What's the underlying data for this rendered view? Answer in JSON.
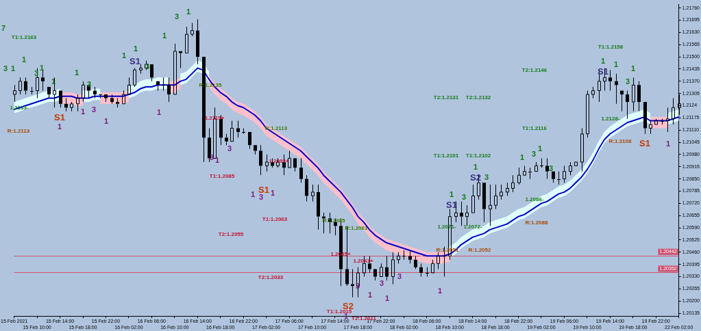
{
  "chart_data": {
    "type": "candlestick",
    "color": "#000000",
    "grid": false,
    "categories": [
      "15 Feb 2021",
      null,
      null,
      null,
      "15 Feb 10:00",
      null,
      null,
      null,
      "15 Feb 14:00",
      null,
      null,
      null,
      "15 Feb 18:00",
      null,
      null,
      null,
      "15 Feb 22:00",
      null,
      null,
      null,
      "16 Feb 02:00",
      null,
      null,
      null,
      "16 Feb 06:00",
      null,
      null,
      null,
      "16 Feb 10:00",
      null,
      null,
      null,
      "16 Feb 14:00",
      null,
      null,
      null,
      "16 Feb 18:00",
      null,
      null,
      null,
      "16 Feb 22:00",
      null,
      null,
      null,
      "17 Feb 02:00",
      null,
      null,
      null,
      "17 Feb 06:00",
      null,
      null,
      null,
      "17 Feb 10:00",
      null,
      null,
      null,
      "17 Feb 14:00",
      null,
      null,
      null,
      "17 Feb 18:00",
      null,
      null,
      null,
      "17 Feb 22:00",
      null,
      null,
      null,
      "18 Feb 02:00",
      null,
      null,
      null,
      "18 Feb 06:00",
      null,
      null,
      null,
      "18 Feb 10:00",
      null,
      null,
      null,
      "18 Feb 14:00",
      null,
      null,
      null,
      "18 Feb 18:00",
      null,
      null,
      null,
      "18 Feb 22:00",
      null,
      null,
      null,
      "19 Feb 02:00",
      null,
      null,
      null,
      "19 Feb 06:00",
      null,
      null,
      null,
      "19 Feb 10:00",
      null,
      null,
      null,
      "19 Feb 14:00",
      null,
      null,
      null,
      "19 Feb 18:00",
      null,
      null,
      null,
      "19 Feb 22:00",
      null,
      null,
      null,
      "22 Feb 02:00"
    ],
    "ohlc": [
      [
        1.213,
        1.2135,
        1.2126,
        1.2132
      ],
      [
        1.2132,
        1.2139,
        1.213,
        1.2137
      ],
      [
        1.2137,
        1.2139,
        1.213,
        1.2132
      ],
      [
        1.2132,
        1.2134,
        1.213,
        1.2132
      ],
      [
        1.2132,
        1.2144,
        1.2128,
        1.2139
      ],
      [
        1.2139,
        1.2143,
        1.2132,
        1.2137
      ],
      [
        1.2134,
        1.2134,
        1.2128,
        1.213
      ],
      [
        1.213,
        1.2139,
        1.2123,
        1.2132
      ],
      [
        1.2132,
        1.2132,
        1.2123,
        1.2125
      ],
      [
        1.2125,
        1.2128,
        1.2121,
        1.2123
      ],
      [
        1.2123,
        1.2126,
        1.2121,
        1.2125
      ],
      [
        1.2125,
        1.213,
        1.2121,
        1.2128
      ],
      [
        1.2128,
        1.2137,
        1.2126,
        1.2135
      ],
      [
        1.2135,
        1.2135,
        1.2128,
        1.2132
      ],
      [
        1.2132,
        1.2134,
        1.2128,
        1.213
      ],
      [
        1.213,
        1.213,
        1.2128,
        1.213
      ],
      [
        1.213,
        1.213,
        1.2126,
        1.2128
      ],
      [
        1.2128,
        1.213,
        1.2125,
        1.2126
      ],
      [
        1.2126,
        1.2128,
        1.2123,
        1.2125
      ],
      [
        1.2125,
        1.2132,
        1.2125,
        1.213
      ],
      [
        1.213,
        1.2139,
        1.213,
        1.2135
      ],
      [
        1.2135,
        1.2144,
        1.2134,
        1.2143
      ],
      [
        1.2143,
        1.2146,
        1.2141,
        1.2144
      ],
      [
        1.2144,
        1.2148,
        1.2143,
        1.2146
      ],
      [
        1.2146,
        1.2146,
        1.2137,
        1.2139
      ],
      [
        1.2137,
        1.2137,
        1.2132,
        1.2135
      ],
      [
        1.2135,
        1.2139,
        1.2132,
        1.2135
      ],
      [
        1.2135,
        1.2139,
        1.2126,
        1.213
      ],
      [
        1.213,
        1.2157,
        1.213,
        1.2153
      ],
      [
        1.2153,
        1.2153,
        1.2144,
        1.2152
      ],
      [
        1.2152,
        1.2166,
        1.2152,
        1.2162
      ],
      [
        1.2162,
        1.2168,
        1.2161,
        1.2164
      ],
      [
        1.2164,
        1.217,
        1.2146,
        1.215
      ],
      [
        1.215,
        1.215,
        1.2094,
        1.2107
      ],
      [
        1.2107,
        1.2112,
        1.2094,
        1.2096
      ],
      [
        1.2096,
        1.2123,
        1.2096,
        1.2117
      ],
      [
        1.2117,
        1.2119,
        1.2103,
        1.2107
      ],
      [
        1.2107,
        1.2109,
        1.2103,
        1.2105
      ],
      [
        1.2105,
        1.2116,
        1.2105,
        1.2112
      ],
      [
        1.2112,
        1.2116,
        1.2107,
        1.211
      ],
      [
        1.211,
        1.2112,
        1.2109,
        1.211
      ],
      [
        1.211,
        1.211,
        1.2101,
        1.2103
      ],
      [
        1.2103,
        1.2103,
        1.2098,
        1.21
      ],
      [
        1.21,
        1.2103,
        1.2087,
        1.2092
      ],
      [
        1.2092,
        1.2098,
        1.2089,
        1.2094
      ],
      [
        1.2094,
        1.2096,
        1.2091,
        1.2092
      ],
      [
        1.2092,
        1.2096,
        1.2091,
        1.2094
      ],
      [
        1.2094,
        1.2098,
        1.2087,
        1.2091
      ],
      [
        1.2091,
        1.21,
        1.2091,
        1.2096
      ],
      [
        1.2096,
        1.2096,
        1.2089,
        1.2091
      ],
      [
        1.2091,
        1.2096,
        1.2083,
        1.2085
      ],
      [
        1.2085,
        1.2087,
        1.2073,
        1.2076
      ],
      [
        1.2076,
        1.2082,
        1.2073,
        1.2078
      ],
      [
        1.2078,
        1.2082,
        1.2058,
        1.2065
      ],
      [
        1.2065,
        1.2067,
        1.2056,
        1.2064
      ],
      [
        1.2064,
        1.2067,
        1.2056,
        1.2062
      ],
      [
        1.2062,
        1.2064,
        1.2055,
        1.206
      ],
      [
        1.206,
        1.2064,
        1.2028,
        1.2037
      ],
      [
        1.2037,
        1.206,
        1.2028,
        1.2029
      ],
      [
        1.2029,
        1.2037,
        1.2022,
        1.2028
      ],
      [
        1.2028,
        1.2038,
        1.2022,
        1.2035
      ],
      [
        1.2035,
        1.2044,
        1.2033,
        1.204
      ],
      [
        1.204,
        1.2044,
        1.2035,
        1.2037
      ],
      [
        1.2037,
        1.2037,
        1.2031,
        1.2033
      ],
      [
        1.2033,
        1.204,
        1.2033,
        1.2038
      ],
      [
        1.2038,
        1.2044,
        1.2031,
        1.2033
      ],
      [
        1.2033,
        1.2046,
        1.2029,
        1.2042
      ],
      [
        1.2042,
        1.2046,
        1.204,
        1.2044
      ],
      [
        1.2044,
        1.2047,
        1.2042,
        1.2044
      ],
      [
        1.2044,
        1.2047,
        1.204,
        1.2042
      ],
      [
        1.2042,
        1.2044,
        1.2037,
        1.2038
      ],
      [
        1.2038,
        1.204,
        1.2033,
        1.2035
      ],
      [
        1.2035,
        1.2038,
        1.2033,
        1.2035
      ],
      [
        1.2035,
        1.2042,
        1.2035,
        1.204
      ],
      [
        1.204,
        1.2046,
        1.2037,
        1.2044
      ],
      [
        1.2044,
        1.2049,
        1.2033,
        1.2044
      ],
      [
        1.2044,
        1.2069,
        1.2042,
        1.2065
      ],
      [
        1.2065,
        1.2073,
        1.2062,
        1.2067
      ],
      [
        1.2067,
        1.2073,
        1.206,
        1.2065
      ],
      [
        1.2065,
        1.2071,
        1.206,
        1.2067
      ],
      [
        1.2067,
        1.2082,
        1.2067,
        1.2076
      ],
      [
        1.2076,
        1.2087,
        1.2074,
        1.2083
      ],
      [
        1.2083,
        1.2083,
        1.2062,
        1.2069
      ],
      [
        1.2069,
        1.2082,
        1.206,
        1.2071
      ],
      [
        1.2071,
        1.2082,
        1.2069,
        1.2076
      ],
      [
        1.2076,
        1.2082,
        1.2074,
        1.2078
      ],
      [
        1.2078,
        1.2083,
        1.2076,
        1.208
      ],
      [
        1.208,
        1.2087,
        1.2078,
        1.2083
      ],
      [
        1.2083,
        1.2091,
        1.2082,
        1.2087
      ],
      [
        1.2087,
        1.2092,
        1.2087,
        1.2089
      ],
      [
        1.2089,
        1.2091,
        1.2085,
        1.2089
      ],
      [
        1.2089,
        1.2094,
        1.2089,
        1.2092
      ],
      [
        1.2092,
        1.2096,
        1.2091,
        1.2092
      ],
      [
        1.2092,
        1.2096,
        1.2085,
        1.2089
      ],
      [
        1.2089,
        1.2089,
        1.2083,
        1.2085
      ],
      [
        1.2085,
        1.2089,
        1.2082,
        1.2085
      ],
      [
        1.2085,
        1.2092,
        1.2083,
        1.2089
      ],
      [
        1.2089,
        1.2094,
        1.2087,
        1.2092
      ],
      [
        1.2092,
        1.2094,
        1.2092,
        1.2094
      ],
      [
        1.2094,
        1.2112,
        1.2089,
        1.2109
      ],
      [
        1.2109,
        1.2132,
        1.2107,
        1.213
      ],
      [
        1.213,
        1.2134,
        1.2128,
        1.2132
      ],
      [
        1.2132,
        1.2143,
        1.2126,
        1.2137
      ],
      [
        1.2137,
        1.2144,
        1.2132,
        1.2139
      ],
      [
        1.2139,
        1.2143,
        1.2132,
        1.2137
      ],
      [
        1.2137,
        1.2141,
        1.2125,
        1.2135
      ],
      [
        1.2132,
        1.2132,
        1.2121,
        1.213
      ],
      [
        1.213,
        1.2132,
        1.2117,
        1.2126
      ],
      [
        1.2126,
        1.2139,
        1.2121,
        1.2135
      ],
      [
        1.2135,
        1.2137,
        1.2121,
        1.2126
      ],
      [
        1.2126,
        1.2126,
        1.2109,
        1.2112
      ],
      [
        1.2112,
        1.2116,
        1.2109,
        1.2114
      ],
      [
        1.2114,
        1.2117,
        1.2114,
        1.2116
      ],
      [
        1.2116,
        1.2117,
        1.2114,
        1.2116
      ],
      [
        1.2116,
        1.2123,
        1.211,
        1.2117
      ],
      [
        1.2117,
        1.2128,
        1.2114,
        1.2123
      ],
      [
        1.2123,
        1.213,
        1.2119,
        1.2125
      ]
    ],
    "series": [
      {
        "type": "line",
        "color": "#e0ffff",
        "values": [
          1.2123,
          1.2124,
          1.2125,
          1.2126,
          1.2127,
          1.2128,
          1.2129,
          1.2129,
          1.213,
          null,
          null,
          null,
          1.2129,
          1.2129,
          1.213,
          1.213,
          null,
          null,
          null,
          null,
          1.2131,
          1.2132,
          1.2134,
          1.2135,
          1.2135,
          1.2136,
          1.2136,
          1.2136,
          null,
          1.2138,
          1.2139,
          1.2142,
          1.2145,
          1.2144,
          1.2139,
          null,
          null,
          null,
          null,
          null,
          null,
          null,
          null,
          null,
          null,
          null,
          null,
          null,
          null,
          null,
          null,
          null,
          null,
          null,
          null,
          null,
          null,
          null,
          null,
          null,
          null,
          null,
          null,
          null,
          null,
          null,
          null,
          null,
          null,
          null,
          null,
          null,
          null,
          null,
          null,
          null,
          1.2046,
          1.2048,
          1.2051,
          1.2053,
          1.2055,
          1.2056,
          1.2057,
          1.2059,
          1.206,
          1.2061,
          1.2062,
          1.2064,
          1.2066,
          1.2067,
          1.2069,
          1.2071,
          1.2073,
          1.2074,
          1.2076,
          1.2078,
          1.2079,
          1.2081,
          1.2084,
          1.2087,
          1.2091,
          1.2096,
          1.2102,
          1.2107,
          1.211,
          1.2112,
          1.2114,
          1.2116,
          1.2117,
          1.2118,
          1.2119,
          1.2117,
          null,
          null,
          null,
          null,
          null
        ],
        "lower": [
          1.212,
          1.2121,
          1.2122,
          1.2123,
          1.2124,
          1.2125,
          1.2126,
          1.2126,
          1.2127,
          null,
          null,
          null,
          1.2126,
          1.2126,
          1.2127,
          1.2127,
          null,
          null,
          null,
          null,
          1.2128,
          1.2129,
          1.2131,
          1.2132,
          1.2132,
          1.2133,
          1.2133,
          1.2133,
          null,
          1.2135,
          1.2136,
          1.2139,
          1.2142,
          1.2141,
          1.2136,
          null,
          null,
          null,
          null,
          null,
          null,
          null,
          null,
          null,
          null,
          null,
          null,
          null,
          null,
          null,
          null,
          null,
          null,
          null,
          null,
          null,
          null,
          null,
          null,
          null,
          null,
          null,
          null,
          null,
          null,
          null,
          null,
          null,
          null,
          null,
          null,
          null,
          null,
          null,
          null,
          null,
          1.2043,
          1.2045,
          1.2048,
          1.205,
          1.2052,
          1.2053,
          1.2054,
          1.2056,
          1.2057,
          1.2058,
          1.2059,
          1.2061,
          1.2063,
          1.2064,
          1.2066,
          1.2068,
          1.207,
          1.2071,
          1.2073,
          1.2075,
          1.2076,
          1.2078,
          1.2081,
          1.2084,
          1.2088,
          1.2093,
          1.2099,
          1.2104,
          1.2107,
          1.2109,
          1.2111,
          1.2113,
          1.2114,
          1.2115,
          1.2116,
          1.2114,
          null,
          null,
          1.2114,
          1.2115,
          1.2116
        ],
        "upper": [
          1.2126,
          1.2127,
          1.2128,
          1.2129,
          1.213,
          1.2131,
          1.2132,
          1.2132,
          1.2133,
          null,
          null,
          null,
          1.2132,
          1.2132,
          1.2133,
          1.2133,
          null,
          null,
          null,
          null,
          1.2134,
          1.2135,
          1.2137,
          1.2138,
          1.2138,
          1.2139,
          1.2139,
          1.2139,
          null,
          1.2141,
          1.2142,
          1.2145,
          1.2148,
          1.2147,
          1.2142,
          null,
          null,
          null,
          null,
          null,
          null,
          null,
          null,
          null,
          null,
          null,
          null,
          null,
          null,
          null,
          null,
          null,
          null,
          null,
          null,
          null,
          null,
          null,
          null,
          null,
          null,
          null,
          null,
          null,
          null,
          null,
          null,
          null,
          null,
          null,
          null,
          null,
          null,
          null,
          null,
          null,
          1.2049,
          1.2051,
          1.2054,
          1.2056,
          1.2058,
          1.2059,
          1.206,
          1.2062,
          1.2063,
          1.2064,
          1.2065,
          1.2067,
          1.2069,
          1.207,
          1.2072,
          1.2074,
          1.2076,
          1.2077,
          1.2079,
          1.2081,
          1.2082,
          1.2084,
          1.2087,
          1.209,
          1.2094,
          1.2099,
          1.2105,
          1.211,
          1.2113,
          1.2115,
          1.2117,
          1.2119,
          1.212,
          1.2121,
          1.2122,
          1.212,
          null,
          null,
          1.212,
          1.2121,
          1.2122
        ]
      },
      {
        "type": "line",
        "color": "#ffc0cb",
        "values": [
          null,
          null,
          null,
          null,
          null,
          null,
          null,
          null,
          1.2128,
          1.2128,
          1.2128,
          1.2127,
          1.2127,
          null,
          null,
          1.2128,
          1.2128,
          1.2128,
          1.2128,
          1.2128,
          1.2129,
          null,
          null,
          null,
          null,
          null,
          null,
          1.2134,
          1.2134,
          1.2136,
          null,
          null,
          null,
          null,
          1.2137,
          1.2133,
          1.213,
          1.2128,
          1.2125,
          1.2123,
          1.2122,
          1.212,
          1.2118,
          1.2115,
          1.2111,
          1.2109,
          1.2107,
          1.2105,
          1.2103,
          1.2101,
          1.2099,
          1.2096,
          1.2093,
          1.209,
          1.2086,
          1.2083,
          1.208,
          1.2077,
          1.2073,
          1.2069,
          1.2064,
          1.2061,
          1.2057,
          1.2054,
          1.2052,
          1.205,
          1.2049,
          1.2048,
          1.2047,
          1.2046,
          1.2045,
          1.2044,
          1.2043,
          1.2043,
          1.2043,
          1.2043,
          1.2044,
          null,
          null,
          null,
          null,
          null,
          null,
          null,
          null,
          null,
          null,
          null,
          null,
          null,
          null,
          null,
          null,
          null,
          null,
          null,
          null,
          null,
          null,
          null,
          null,
          null,
          null,
          null,
          null,
          null,
          null,
          null,
          null,
          null,
          null,
          1.2115,
          1.2115,
          1.2115,
          1.2115,
          null,
          null
        ],
        "lower": [
          null,
          null,
          null,
          null,
          null,
          null,
          null,
          null,
          1.2125,
          1.2125,
          1.2125,
          1.2124,
          1.2124,
          null,
          null,
          1.2125,
          1.2125,
          1.2125,
          1.2125,
          1.2125,
          1.2126,
          null,
          null,
          null,
          null,
          null,
          null,
          1.2131,
          1.2131,
          1.2133,
          null,
          null,
          null,
          null,
          1.2134,
          1.213,
          1.2127,
          1.2125,
          1.2122,
          1.212,
          1.2119,
          1.2117,
          1.2115,
          1.2112,
          1.2108,
          1.2106,
          1.2104,
          1.2102,
          1.21,
          1.2098,
          1.2096,
          1.2093,
          1.209,
          1.2087,
          1.2083,
          1.208,
          1.2077,
          1.2074,
          1.207,
          1.2066,
          1.2061,
          1.2058,
          1.2054,
          1.2051,
          1.2049,
          1.2047,
          1.2046,
          1.2045,
          1.2044,
          1.2043,
          1.2042,
          1.2041,
          1.204,
          1.204,
          1.204,
          1.204,
          1.2041,
          null,
          null,
          null,
          null,
          null,
          null,
          null,
          null,
          null,
          null,
          null,
          null,
          null,
          null,
          null,
          null,
          null,
          null,
          null,
          null,
          null,
          null,
          null,
          null,
          null,
          null,
          null,
          null,
          null,
          null,
          null,
          null,
          null,
          null,
          1.2112,
          1.2112,
          1.2112,
          1.2112,
          null,
          null
        ],
        "upper": [
          null,
          null,
          null,
          null,
          null,
          null,
          null,
          null,
          1.2131,
          1.2131,
          1.2131,
          1.213,
          1.213,
          null,
          null,
          1.2131,
          1.2131,
          1.2131,
          1.2131,
          1.2131,
          1.2132,
          null,
          null,
          null,
          null,
          null,
          null,
          1.2137,
          1.2137,
          1.2139,
          null,
          null,
          null,
          null,
          1.214,
          1.2136,
          1.2133,
          1.2131,
          1.2128,
          1.2126,
          1.2125,
          1.2123,
          1.2121,
          1.2118,
          1.2114,
          1.2112,
          1.211,
          1.2108,
          1.2106,
          1.2104,
          1.2102,
          1.2099,
          1.2096,
          1.2093,
          1.2089,
          1.2086,
          1.2083,
          1.208,
          1.2076,
          1.2072,
          1.2067,
          1.2064,
          1.206,
          1.2057,
          1.2055,
          1.2053,
          1.2052,
          1.2051,
          1.205,
          1.2049,
          1.2048,
          1.2047,
          1.2046,
          1.2046,
          1.2046,
          1.2046,
          1.2047,
          null,
          null,
          null,
          null,
          null,
          null,
          null,
          null,
          null,
          null,
          null,
          null,
          null,
          null,
          null,
          null,
          null,
          null,
          null,
          null,
          null,
          null,
          null,
          null,
          null,
          null,
          null,
          null,
          null,
          null,
          null,
          null,
          null,
          null,
          1.2118,
          1.2118,
          1.2118,
          1.2118,
          null,
          null
        ]
      },
      {
        "type": "line",
        "color": "#0000cd",
        "values": [
          1.2122,
          1.2123,
          1.2124,
          1.2125,
          1.2126,
          1.2127,
          1.2128,
          1.2128,
          1.2129,
          1.2129,
          1.2129,
          1.2128,
          1.2128,
          1.2128,
          1.2129,
          1.2129,
          1.2129,
          1.2129,
          1.2129,
          1.2129,
          1.213,
          1.2131,
          1.2133,
          1.2134,
          1.2134,
          1.2135,
          1.2135,
          1.2135,
          1.2135,
          1.2137,
          1.2138,
          1.2141,
          1.2144,
          1.2143,
          1.2138,
          1.2134,
          1.2131,
          1.2129,
          1.2126,
          1.2124,
          1.2123,
          1.2121,
          1.2119,
          1.2116,
          1.2112,
          1.211,
          1.2108,
          1.2106,
          1.2104,
          1.2102,
          1.21,
          1.2097,
          1.2094,
          1.2091,
          1.2087,
          1.2084,
          1.2081,
          1.2078,
          1.2074,
          1.207,
          1.2065,
          1.2062,
          1.2058,
          1.2055,
          1.2053,
          1.2051,
          1.205,
          1.2049,
          1.2048,
          1.2047,
          1.2046,
          1.2045,
          1.2044,
          1.2044,
          1.2044,
          1.2044,
          1.2045,
          1.2047,
          1.205,
          1.2052,
          1.2054,
          1.2055,
          1.2056,
          1.2058,
          1.2059,
          1.206,
          1.2061,
          1.2063,
          1.2065,
          1.2066,
          1.2068,
          1.207,
          1.2072,
          1.2073,
          1.2075,
          1.2077,
          1.2078,
          1.208,
          1.2083,
          1.2086,
          1.209,
          1.2095,
          1.2101,
          1.2106,
          1.2109,
          1.2111,
          1.2113,
          1.2115,
          1.2116,
          1.2117,
          1.2118,
          1.2116,
          1.2116,
          1.2116,
          1.2116,
          1.2117,
          1.2118
        ]
      }
    ],
    "ylim": [
      1.2012,
      1.2178
    ],
    "yticks": [
      1.20135,
      {
        "value": 1.202,
        "label": "1.20200"
      },
      1.20265,
      {
        "value": 1.2033,
        "label": "1.20330"
      },
      1.20395,
      {
        "value": 1.2046,
        "label": "1.20460"
      },
      1.20525,
      {
        "value": 1.2059,
        "label": "1.20590"
      },
      1.20655,
      {
        "value": 1.2072,
        "label": "1.20720"
      },
      1.20785,
      {
        "value": 1.2085,
        "label": "1.20850"
      },
      1.20915,
      {
        "value": 1.2098,
        "label": "1.20980"
      },
      1.21045,
      {
        "value": 1.2111,
        "label": "1.21110"
      },
      1.21175,
      1.2124,
      1.21305,
      {
        "value": 1.2137,
        "label": "1.21370"
      },
      1.21435,
      {
        "value": 1.215,
        "label": "1.21500"
      },
      1.21565,
      {
        "value": 1.2163,
        "label": "1.21630"
      },
      1.21695,
      {
        "value": 1.2176,
        "label": "1.21760"
      }
    ],
    "ref_lines": [
      {
        "axis": "y",
        "value": 1.20442,
        "label": "1.20442",
        "color": "#d0506e"
      },
      {
        "axis": "y",
        "value": 1.20352,
        "label": "1.20352",
        "color": "#d0506e"
      }
    ],
    "annotations": [
      "7",
      "T1:1.2163",
      "3",
      "1",
      "1",
      "3",
      "1",
      "1",
      "1",
      "3",
      "1",
      "1",
      "S1",
      "3",
      "1",
      "3",
      "1",
      "R:1.2113",
      "1.2133-",
      "S1",
      "1",
      "1",
      "3",
      "1",
      "1",
      "R:1.2135",
      "1.2115+",
      "3",
      "3",
      "1",
      "R:1.2113",
      "1.2093+",
      "T1:1.2085",
      "S1",
      "1",
      "3",
      "1",
      "T1:1.2063",
      "T2:1.2055",
      "R:1.2085",
      "R:1.2061",
      "1.2045+",
      "1.2041+",
      "T2:1.2033",
      "3",
      "1",
      "3",
      "1",
      "3",
      "S2",
      "T1:1.2015",
      "1",
      "T1:1.2011",
      "R:1.2051",
      "R:1.2052",
      "1",
      "1.2071-",
      "1.2072-",
      "1",
      "3",
      "S1",
      "1",
      "S2",
      "3",
      "T1:1.2101",
      "T1:1.2102",
      "T2:1.2131",
      "T2:1.2132",
      "1",
      "3",
      "1",
      "3",
      "T1:1.2116",
      "T2:1.2146",
      "T1:1.2158",
      "1",
      "1",
      "1",
      "3",
      "S1",
      "1.2128-",
      "1.2086-",
      "R:1.2088",
      "R:1.2108",
      "S1",
      "1"
    ]
  }
}
